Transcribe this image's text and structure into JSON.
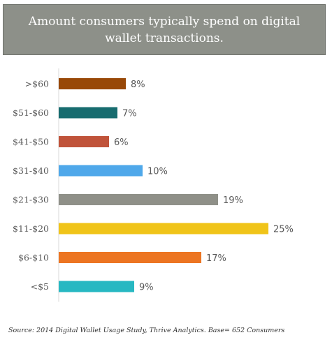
{
  "chart_data": {
    "type": "bar",
    "orientation": "horizontal",
    "title": "Amount consumers typically spend on digital wallet transactions.",
    "categories": [
      ">$60",
      "$51-$60",
      "$41-$50",
      "$31-$40",
      "$21-$30",
      "$11-$20",
      "$6-$10",
      "<$5"
    ],
    "values": [
      8,
      7,
      6,
      10,
      19,
      25,
      17,
      9
    ],
    "value_labels": [
      "8%",
      "7%",
      "6%",
      "10%",
      "19%",
      "25%",
      "17%",
      "9%"
    ],
    "unit": "%",
    "colors": [
      "#984807",
      "#176c6f",
      "#c0533a",
      "#4fa8ea",
      "#8f9088",
      "#f0c419",
      "#ec7522",
      "#27b8c2"
    ],
    "xlim": [
      0,
      25
    ],
    "grid": false,
    "legend": "none"
  },
  "source": "Source: 2014 Digital Wallet Usage Study, Thrive Analytics.  Base= 652 Consumers"
}
